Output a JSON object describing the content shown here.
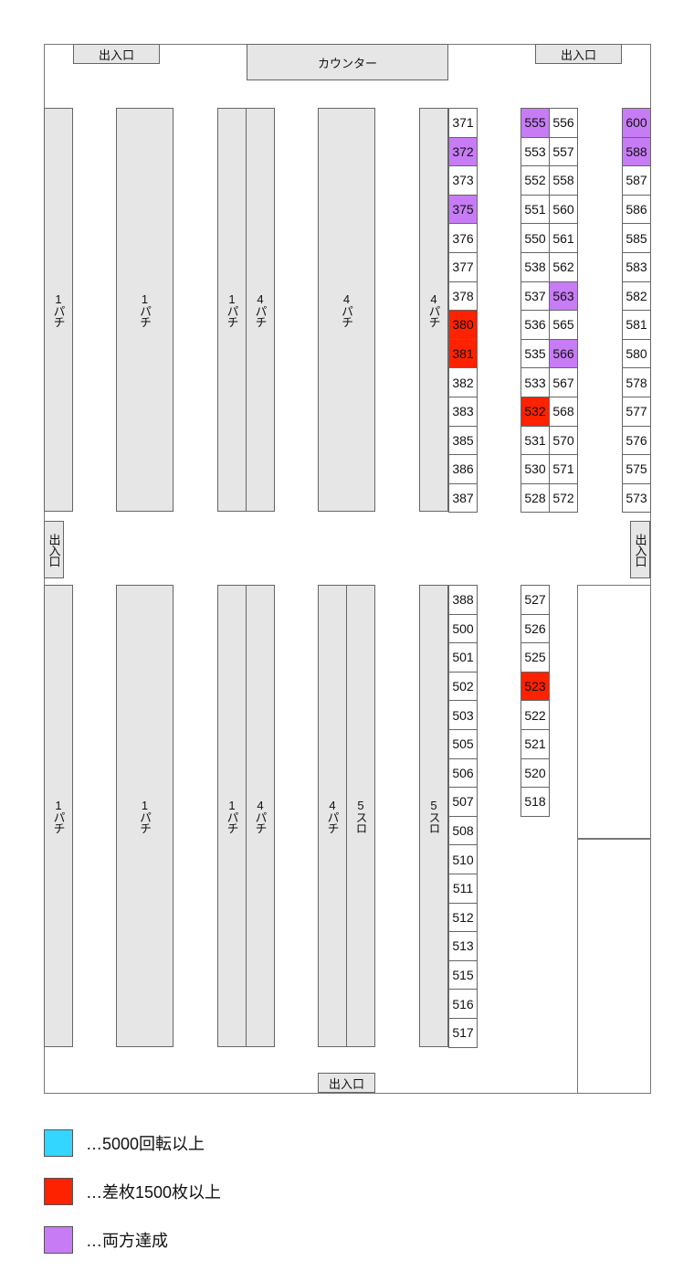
{
  "labels": {
    "exit": "出入口",
    "counter": "カウンター"
  },
  "colors": {
    "spins": "#33d6ff",
    "diff": "#ff2200",
    "both": "#c77cf5",
    "island": "#e6e6e6"
  },
  "islands": {
    "top": [
      "1パチ",
      "1パチ",
      "1パチ",
      "4パチ",
      "4パチ",
      "4パチ"
    ],
    "bottom": [
      "1パチ",
      "1パチ",
      "1パチ",
      "4パチ",
      "4パチ",
      "5スロ",
      "5スロ"
    ]
  },
  "columns": {
    "c371": [
      [
        "371",
        ""
      ],
      [
        "372",
        "both"
      ],
      [
        "373",
        ""
      ],
      [
        "375",
        "both"
      ],
      [
        "376",
        ""
      ],
      [
        "377",
        ""
      ],
      [
        "378",
        ""
      ],
      [
        "380",
        "diff"
      ],
      [
        "381",
        "diff"
      ],
      [
        "382",
        ""
      ],
      [
        "383",
        ""
      ],
      [
        "385",
        ""
      ],
      [
        "386",
        ""
      ],
      [
        "387",
        ""
      ]
    ],
    "c555": [
      [
        "555",
        "both"
      ],
      [
        "553",
        ""
      ],
      [
        "552",
        ""
      ],
      [
        "551",
        ""
      ],
      [
        "550",
        ""
      ],
      [
        "538",
        ""
      ],
      [
        "537",
        ""
      ],
      [
        "536",
        ""
      ],
      [
        "535",
        ""
      ],
      [
        "533",
        ""
      ],
      [
        "532",
        "diff"
      ],
      [
        "531",
        ""
      ],
      [
        "530",
        ""
      ],
      [
        "528",
        ""
      ]
    ],
    "c556": [
      [
        "556",
        ""
      ],
      [
        "557",
        ""
      ],
      [
        "558",
        ""
      ],
      [
        "560",
        ""
      ],
      [
        "561",
        ""
      ],
      [
        "562",
        ""
      ],
      [
        "563",
        "both"
      ],
      [
        "565",
        ""
      ],
      [
        "566",
        "both"
      ],
      [
        "567",
        ""
      ],
      [
        "568",
        ""
      ],
      [
        "570",
        ""
      ],
      [
        "571",
        ""
      ],
      [
        "572",
        ""
      ]
    ],
    "c600": [
      [
        "600",
        "both"
      ],
      [
        "588",
        "both"
      ],
      [
        "587",
        ""
      ],
      [
        "586",
        ""
      ],
      [
        "585",
        ""
      ],
      [
        "583",
        ""
      ],
      [
        "582",
        ""
      ],
      [
        "581",
        ""
      ],
      [
        "580",
        ""
      ],
      [
        "578",
        ""
      ],
      [
        "577",
        ""
      ],
      [
        "576",
        ""
      ],
      [
        "575",
        ""
      ],
      [
        "573",
        ""
      ]
    ],
    "c388": [
      [
        "388",
        ""
      ],
      [
        "500",
        ""
      ],
      [
        "501",
        ""
      ],
      [
        "502",
        ""
      ],
      [
        "503",
        ""
      ],
      [
        "505",
        ""
      ],
      [
        "506",
        ""
      ],
      [
        "507",
        ""
      ],
      [
        "508",
        ""
      ],
      [
        "510",
        ""
      ],
      [
        "511",
        ""
      ],
      [
        "512",
        ""
      ],
      [
        "513",
        ""
      ],
      [
        "515",
        ""
      ],
      [
        "516",
        ""
      ],
      [
        "517",
        ""
      ]
    ],
    "c527": [
      [
        "527",
        ""
      ],
      [
        "526",
        ""
      ],
      [
        "525",
        ""
      ],
      [
        "523",
        "diff"
      ],
      [
        "522",
        ""
      ],
      [
        "521",
        ""
      ],
      [
        "520",
        ""
      ],
      [
        "518",
        ""
      ]
    ]
  },
  "legend": [
    {
      "key": "spins",
      "text": "…5000回転以上"
    },
    {
      "key": "diff",
      "text": "…差枚1500枚以上"
    },
    {
      "key": "both",
      "text": "…両方達成"
    }
  ]
}
